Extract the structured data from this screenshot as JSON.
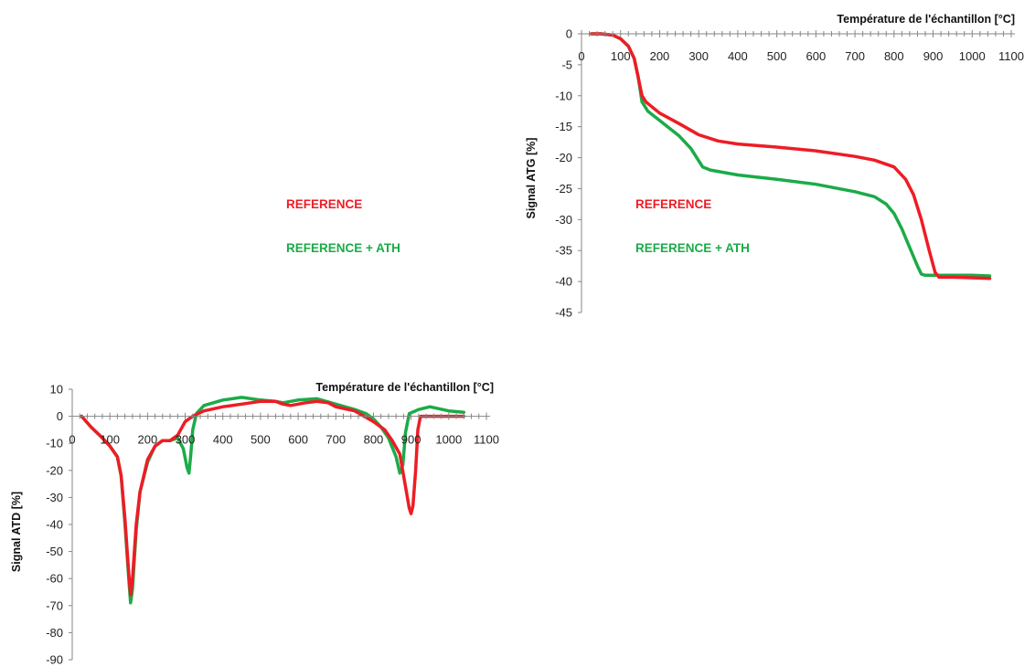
{
  "legend_items": [
    {
      "label": "REFERENCE",
      "color": "#ee1c25"
    },
    {
      "label": "REFERENCE + ATH",
      "color": "#1bab48"
    }
  ],
  "chart_data": [
    {
      "type": "line",
      "xlabel": "Température de l'échantillon  [°C]",
      "ylabel": "Signal ATG [%]",
      "xlim": [
        0,
        1100
      ],
      "ylim": [
        -45,
        0
      ],
      "xticks": [
        0,
        100,
        200,
        300,
        400,
        500,
        600,
        700,
        800,
        900,
        1000,
        1100
      ],
      "yticks": [
        0,
        -5,
        -10,
        -15,
        -20,
        -25,
        -30,
        -35,
        -40,
        -45
      ],
      "x_axis_position": "top",
      "grid": false,
      "series": [
        {
          "name": "REFERENCE",
          "color": "#ee1c25",
          "points": [
            [
              25,
              0
            ],
            [
              50,
              0
            ],
            [
              80,
              -0.2
            ],
            [
              100,
              -0.8
            ],
            [
              120,
              -2
            ],
            [
              135,
              -4
            ],
            [
              145,
              -7
            ],
            [
              155,
              -10
            ],
            [
              165,
              -11
            ],
            [
              200,
              -12.8
            ],
            [
              250,
              -14.5
            ],
            [
              300,
              -16.3
            ],
            [
              350,
              -17.3
            ],
            [
              400,
              -17.8
            ],
            [
              500,
              -18.3
            ],
            [
              600,
              -18.9
            ],
            [
              700,
              -19.8
            ],
            [
              750,
              -20.4
            ],
            [
              800,
              -21.5
            ],
            [
              830,
              -23.5
            ],
            [
              850,
              -26
            ],
            [
              870,
              -30
            ],
            [
              890,
              -35
            ],
            [
              905,
              -38.5
            ],
            [
              915,
              -39.3
            ],
            [
              950,
              -39.3
            ],
            [
              1000,
              -39.4
            ],
            [
              1045,
              -39.5
            ]
          ]
        },
        {
          "name": "REFERENCE + ATH",
          "color": "#1bab48",
          "points": [
            [
              25,
              0
            ],
            [
              50,
              0
            ],
            [
              80,
              -0.2
            ],
            [
              100,
              -0.8
            ],
            [
              120,
              -2
            ],
            [
              135,
              -4
            ],
            [
              145,
              -7
            ],
            [
              155,
              -11
            ],
            [
              170,
              -12.5
            ],
            [
              200,
              -14
            ],
            [
              250,
              -16.5
            ],
            [
              280,
              -18.5
            ],
            [
              300,
              -20.5
            ],
            [
              310,
              -21.5
            ],
            [
              330,
              -22
            ],
            [
              400,
              -22.8
            ],
            [
              500,
              -23.5
            ],
            [
              600,
              -24.3
            ],
            [
              700,
              -25.5
            ],
            [
              750,
              -26.3
            ],
            [
              780,
              -27.5
            ],
            [
              800,
              -29
            ],
            [
              820,
              -31.5
            ],
            [
              840,
              -34.5
            ],
            [
              860,
              -37.5
            ],
            [
              870,
              -38.8
            ],
            [
              880,
              -39
            ],
            [
              920,
              -39
            ],
            [
              1000,
              -39
            ],
            [
              1045,
              -39.1
            ]
          ]
        }
      ]
    },
    {
      "type": "line",
      "xlabel": "Température de l'échantillon  [°C]",
      "ylabel": "Signal ATD [%]",
      "xlim": [
        0,
        1100
      ],
      "ylim": [
        -90,
        10
      ],
      "xticks": [
        0,
        100,
        200,
        300,
        400,
        500,
        600,
        700,
        800,
        900,
        1000,
        1100
      ],
      "yticks": [
        10,
        0,
        -10,
        -20,
        -30,
        -40,
        -50,
        -60,
        -70,
        -80,
        -90
      ],
      "x_axis_position": "y=0",
      "grid": false,
      "series": [
        {
          "name": "REFERENCE",
          "color": "#ee1c25",
          "points": [
            [
              25,
              0
            ],
            [
              50,
              -4
            ],
            [
              80,
              -8
            ],
            [
              100,
              -11
            ],
            [
              120,
              -15
            ],
            [
              130,
              -22
            ],
            [
              140,
              -38
            ],
            [
              150,
              -58
            ],
            [
              155,
              -66
            ],
            [
              160,
              -60
            ],
            [
              170,
              -40
            ],
            [
              180,
              -28
            ],
            [
              200,
              -16
            ],
            [
              220,
              -11
            ],
            [
              240,
              -9
            ],
            [
              260,
              -9
            ],
            [
              280,
              -7
            ],
            [
              300,
              -2
            ],
            [
              320,
              0
            ],
            [
              350,
              2
            ],
            [
              400,
              3.5
            ],
            [
              450,
              4.5
            ],
            [
              500,
              5.5
            ],
            [
              540,
              5.5
            ],
            [
              560,
              4.5
            ],
            [
              580,
              4
            ],
            [
              600,
              4.5
            ],
            [
              620,
              5
            ],
            [
              650,
              5.5
            ],
            [
              680,
              5
            ],
            [
              700,
              3.5
            ],
            [
              750,
              2
            ],
            [
              800,
              -2
            ],
            [
              830,
              -5
            ],
            [
              850,
              -9
            ],
            [
              870,
              -14
            ],
            [
              885,
              -26
            ],
            [
              895,
              -34
            ],
            [
              900,
              -36
            ],
            [
              905,
              -33
            ],
            [
              912,
              -20
            ],
            [
              918,
              -5
            ],
            [
              925,
              0
            ],
            [
              940,
              0
            ],
            [
              1000,
              0
            ],
            [
              1040,
              0
            ]
          ]
        },
        {
          "name": "REFERENCE + ATH",
          "color": "#1bab48",
          "points": [
            [
              25,
              0
            ],
            [
              50,
              -4
            ],
            [
              80,
              -8
            ],
            [
              100,
              -11
            ],
            [
              120,
              -15
            ],
            [
              130,
              -22
            ],
            [
              140,
              -40
            ],
            [
              150,
              -60
            ],
            [
              155,
              -69
            ],
            [
              160,
              -64
            ],
            [
              170,
              -42
            ],
            [
              180,
              -28
            ],
            [
              200,
              -17
            ],
            [
              220,
              -11
            ],
            [
              240,
              -9
            ],
            [
              260,
              -9
            ],
            [
              280,
              -8
            ],
            [
              295,
              -12
            ],
            [
              305,
              -19
            ],
            [
              310,
              -21
            ],
            [
              315,
              -14
            ],
            [
              320,
              -5
            ],
            [
              330,
              1
            ],
            [
              350,
              4
            ],
            [
              400,
              6
            ],
            [
              450,
              7
            ],
            [
              500,
              6
            ],
            [
              540,
              5.5
            ],
            [
              560,
              5
            ],
            [
              580,
              5.5
            ],
            [
              600,
              6
            ],
            [
              650,
              6.5
            ],
            [
              700,
              4.5
            ],
            [
              750,
              2.5
            ],
            [
              780,
              1
            ],
            [
              800,
              -1
            ],
            [
              820,
              -4
            ],
            [
              840,
              -8
            ],
            [
              860,
              -15
            ],
            [
              870,
              -21
            ],
            [
              878,
              -18
            ],
            [
              885,
              -6
            ],
            [
              895,
              1
            ],
            [
              920,
              2.5
            ],
            [
              950,
              3.5
            ],
            [
              1000,
              2
            ],
            [
              1040,
              1.5
            ]
          ]
        }
      ]
    }
  ]
}
